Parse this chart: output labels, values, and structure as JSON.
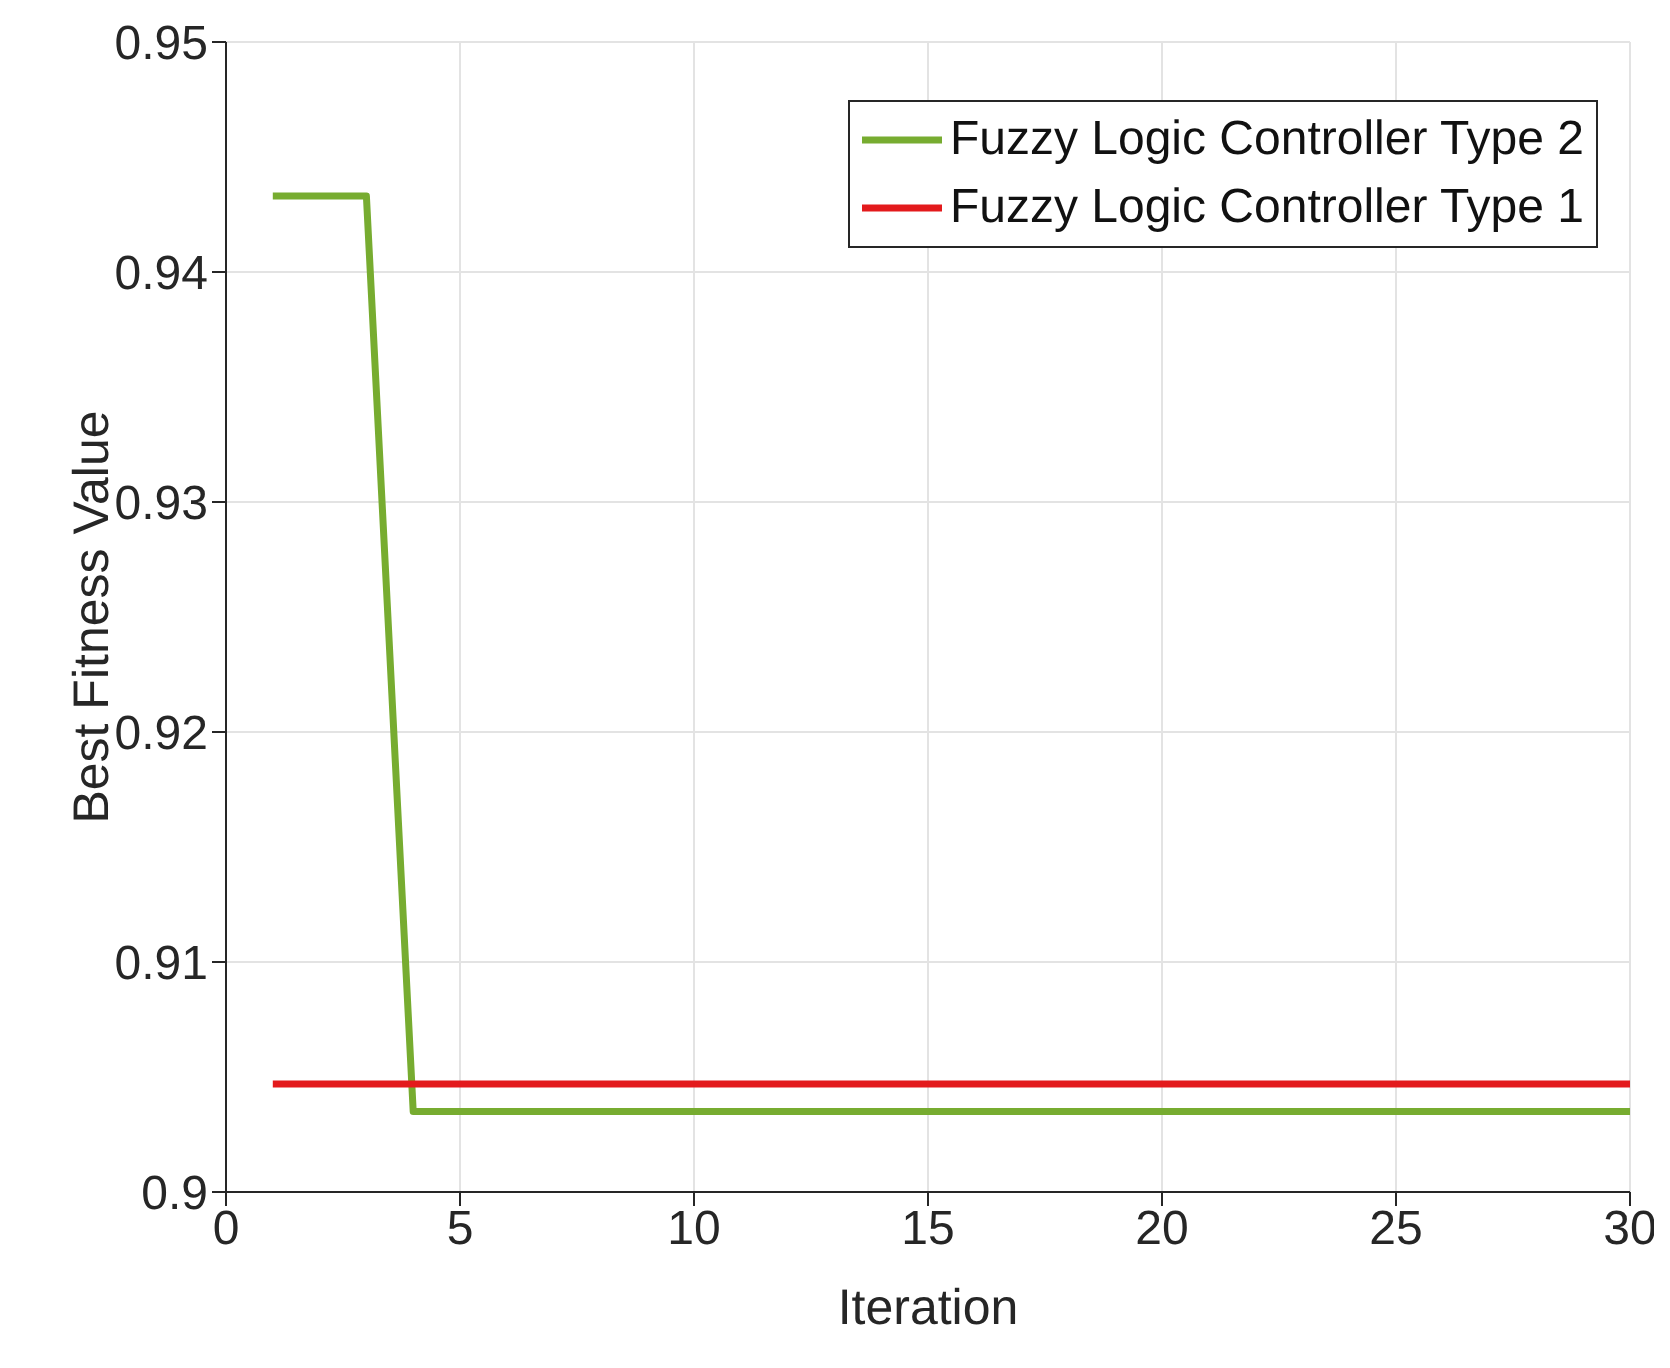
{
  "chart_data": {
    "type": "line",
    "xlabel": "Iteration",
    "ylabel": "Best Fitness Value",
    "series": [
      {
        "name": "Fuzzy Logic Controller Type 2",
        "color": "#77ac30",
        "x": [
          1,
          2,
          3,
          4,
          30
        ],
        "values": [
          0.9433,
          0.9433,
          0.9433,
          0.9035,
          0.9035
        ]
      },
      {
        "name": "Fuzzy Logic Controller Type 1",
        "color": "#e31a1c",
        "x": [
          1,
          30
        ],
        "values": [
          0.9047,
          0.9047
        ]
      }
    ],
    "xlim": [
      0,
      30
    ],
    "xticks": [
      0,
      5,
      10,
      15,
      20,
      25,
      30
    ],
    "ylim": [
      0.9,
      0.95
    ],
    "yticks": [
      0.9,
      0.91,
      0.92,
      0.93,
      0.94,
      0.95
    ],
    "grid": true,
    "legend": "top right",
    "marker": "none",
    "line_style": "solid"
  }
}
